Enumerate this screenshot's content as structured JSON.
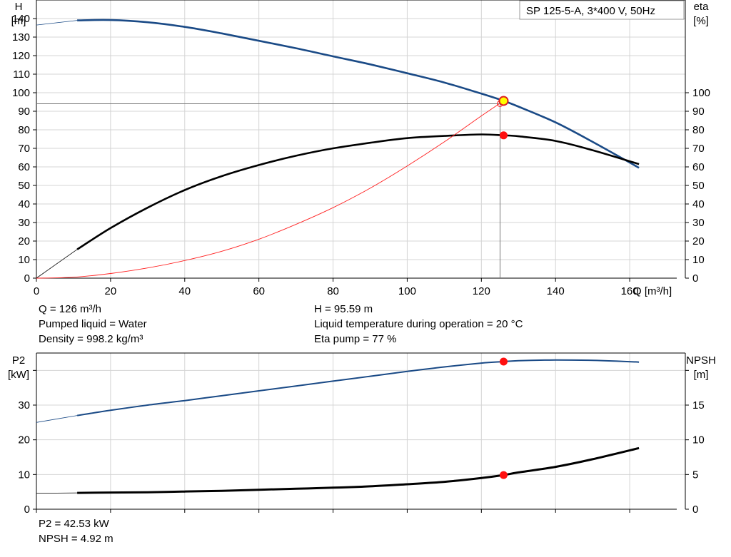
{
  "chart_data": [
    {
      "type": "line",
      "title": "SP 125-5-A, 3*400 V, 50Hz",
      "xlabel": "Q [m³/h]",
      "ylabel": "H\n[m]",
      "ylabel_right": "eta\n[%]",
      "xlim": [
        0,
        175
      ],
      "ylim": [
        0,
        150
      ],
      "ylim_right": [
        0,
        150
      ],
      "grid": true,
      "x_ticks": [
        0,
        20,
        40,
        60,
        80,
        100,
        120,
        140,
        160
      ],
      "y_ticks": [
        0,
        10,
        20,
        30,
        40,
        50,
        60,
        70,
        80,
        90,
        100,
        110,
        120,
        130,
        140
      ],
      "y_ticks_right": [
        0,
        10,
        20,
        30,
        40,
        50,
        60,
        70,
        80,
        90,
        100
      ],
      "series": [
        {
          "name": "H",
          "axis": "left",
          "color": "#1a4a86",
          "x": [
            0,
            11,
            20,
            30,
            40,
            50,
            60,
            70,
            80,
            90,
            100,
            110,
            120,
            126,
            130,
            140,
            150,
            162.5
          ],
          "y": [
            136.5,
            139,
            139.2,
            138,
            135.5,
            132,
            128,
            124,
            119.6,
            115.3,
            110.5,
            105.5,
            99.5,
            95.6,
            92.5,
            84,
            73.5,
            59.5
          ]
        },
        {
          "name": "eta",
          "axis": "right",
          "color": "#000000",
          "x": [
            0,
            11,
            20,
            30,
            40,
            50,
            60,
            70,
            80,
            90,
            100,
            110,
            120,
            126,
            130,
            140,
            150,
            162.5
          ],
          "y": [
            0,
            15.5,
            27,
            38,
            47.5,
            55,
            61,
            66,
            70,
            73,
            75.5,
            76.7,
            77.5,
            77,
            76.5,
            74,
            69,
            61.5
          ]
        },
        {
          "name": "system",
          "axis": "left",
          "color": "#ff2020",
          "x": [
            0,
            10,
            20,
            30,
            40,
            50,
            60,
            70,
            80,
            90,
            100,
            110,
            120,
            126
          ],
          "y": [
            0,
            0.5,
            2.5,
            5.5,
            9.5,
            14.5,
            21,
            29,
            38,
            48.5,
            60.5,
            73.5,
            87.5,
            95.6
          ]
        }
      ],
      "duty_point": {
        "Q": 126,
        "H": 95.59,
        "eta": 77
      }
    },
    {
      "type": "line",
      "xlabel": "",
      "ylabel": "P2\n[kW]",
      "ylabel_right": "NPSH\n[m]",
      "xlim": [
        0,
        175
      ],
      "ylim": [
        0,
        45
      ],
      "ylim_right": [
        0,
        22.5
      ],
      "grid": true,
      "y_ticks": [
        0,
        10,
        20,
        30
      ],
      "y_ticks_right": [
        0,
        5,
        10,
        15
      ],
      "series": [
        {
          "name": "P2",
          "axis": "left",
          "color": "#1a4a86",
          "x": [
            0,
            11,
            20,
            30,
            40,
            50,
            60,
            70,
            80,
            90,
            100,
            110,
            120,
            126,
            130,
            140,
            150,
            162.5
          ],
          "y": [
            25,
            27,
            28.5,
            30,
            31.3,
            32.7,
            34.1,
            35.5,
            36.9,
            38.3,
            39.7,
            41,
            42.1,
            42.53,
            42.8,
            43,
            42.9,
            42.4
          ]
        },
        {
          "name": "NPSH",
          "axis": "right",
          "color": "#000000",
          "x": [
            0,
            11,
            20,
            30,
            40,
            50,
            60,
            70,
            80,
            90,
            100,
            110,
            120,
            126,
            130,
            140,
            150,
            162.5
          ],
          "y": [
            2.3,
            2.35,
            2.4,
            2.45,
            2.55,
            2.65,
            2.8,
            2.95,
            3.1,
            3.3,
            3.6,
            3.95,
            4.5,
            4.92,
            5.3,
            6.1,
            7.2,
            8.8
          ]
        }
      ],
      "duty_point": {
        "Q": 126,
        "P2": 42.53,
        "NPSH": 4.92
      }
    }
  ],
  "info_top_left": [
    "Q = 126 m³/h",
    "Pumped liquid = Water",
    "Density = 998.2 kg/m³"
  ],
  "info_top_right": [
    "H = 95.59 m",
    "Liquid temperature during operation = 20 °C",
    "Eta pump = 77 %"
  ],
  "info_bottom": [
    "P2 = 42.53 kW",
    "NPSH = 4.92 m"
  ]
}
